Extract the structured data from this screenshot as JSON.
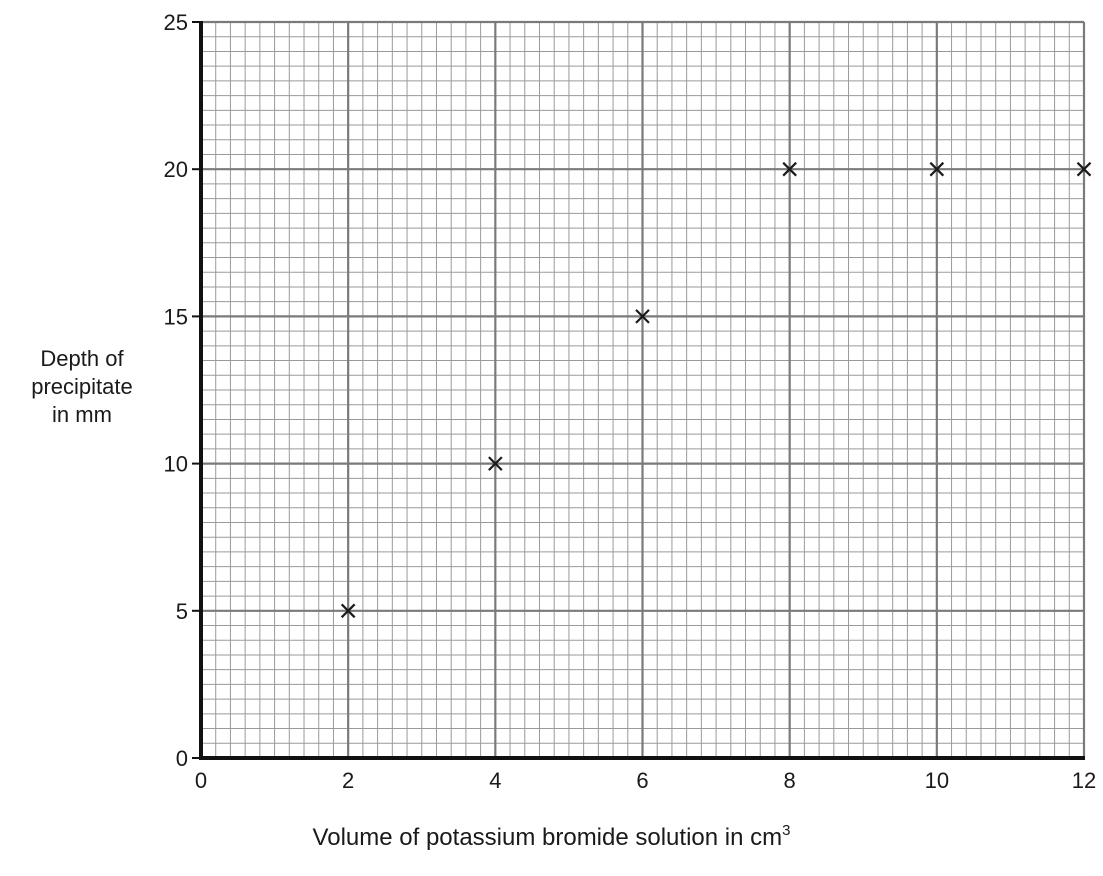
{
  "chart_data": {
    "type": "scatter",
    "title": "",
    "xlabel": {
      "text": "Volume of potassium bromide solution in cm",
      "superscript": "3"
    },
    "ylabel": [
      "Depth of",
      "precipitate",
      "in mm"
    ],
    "xlim": [
      0,
      12
    ],
    "ylim": [
      0,
      25
    ],
    "xticks": [
      0,
      2,
      4,
      6,
      8,
      10,
      12
    ],
    "yticks": [
      0,
      5,
      10,
      15,
      20,
      25
    ],
    "x_minor_per_major": 10,
    "y_minor_per_major": 10,
    "grid": true,
    "marker": "x",
    "points": [
      {
        "x": 2,
        "y": 5
      },
      {
        "x": 4,
        "y": 10
      },
      {
        "x": 6,
        "y": 15
      },
      {
        "x": 8,
        "y": 20
      },
      {
        "x": 10,
        "y": 20
      },
      {
        "x": 12,
        "y": 20
      }
    ]
  },
  "colors": {
    "minor_grid": "#9a9a9a",
    "major_grid": "#7a7a7a",
    "axis": "#111111",
    "marker": "#1a1a1a"
  }
}
